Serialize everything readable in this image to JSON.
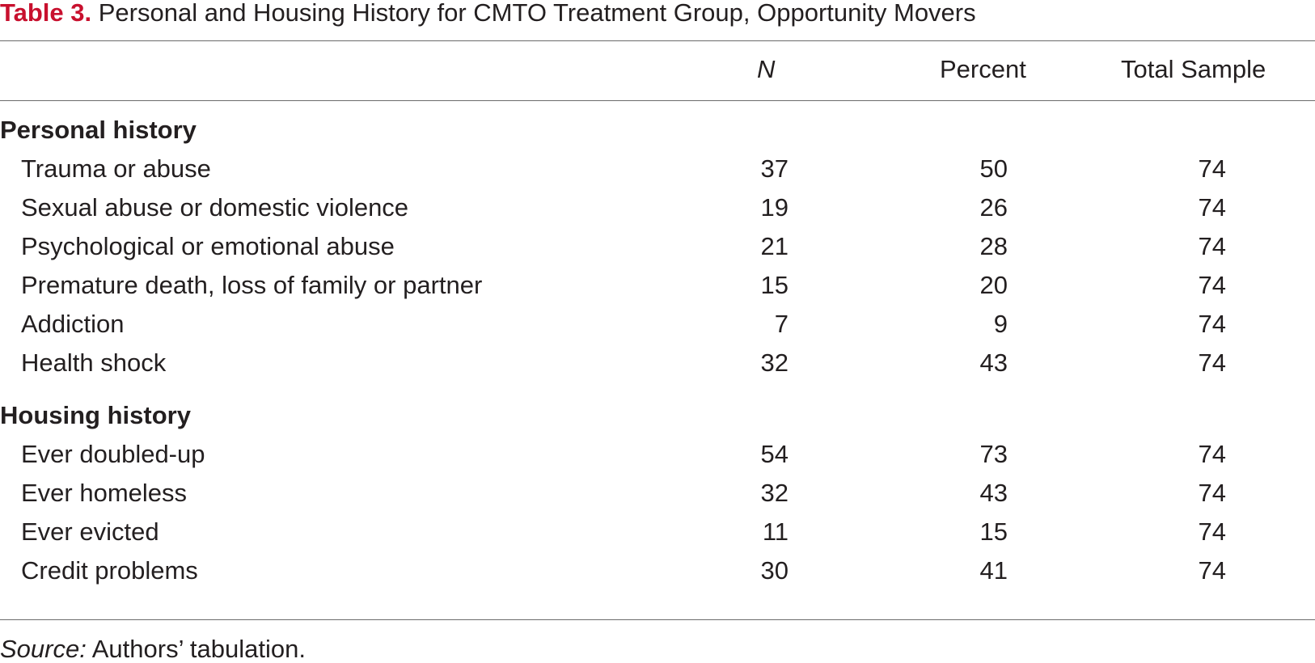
{
  "caption": {
    "label": "Table 3.",
    "title": " Personal and Housing History for CMTO Treatment Group, Opportunity Movers"
  },
  "columns": {
    "n": "N",
    "percent": "Percent",
    "total": "Total Sample"
  },
  "sections": [
    {
      "title": "Personal history",
      "rows": [
        {
          "label": "Trauma or abuse",
          "n": "37",
          "percent": "50",
          "total": "74"
        },
        {
          "label": "Sexual abuse or domestic violence",
          "n": "19",
          "percent": "26",
          "total": "74"
        },
        {
          "label": "Psychological or emotional abuse",
          "n": "21",
          "percent": "28",
          "total": "74"
        },
        {
          "label": "Premature death, loss of family or partner",
          "n": "15",
          "percent": "20",
          "total": "74"
        },
        {
          "label": "Addiction",
          "n": "7",
          "percent": "9",
          "total": "74"
        },
        {
          "label": "Health shock",
          "n": "32",
          "percent": "43",
          "total": "74"
        }
      ]
    },
    {
      "title": "Housing history",
      "rows": [
        {
          "label": "Ever doubled-up",
          "n": "54",
          "percent": "73",
          "total": "74"
        },
        {
          "label": "Ever homeless",
          "n": "32",
          "percent": "43",
          "total": "74"
        },
        {
          "label": "Ever evicted",
          "n": "11",
          "percent": "15",
          "total": "74"
        },
        {
          "label": "Credit problems",
          "n": "30",
          "percent": "41",
          "total": "74"
        }
      ]
    }
  ],
  "source": {
    "label": "Source:",
    "text": " Authors’ tabulation."
  }
}
